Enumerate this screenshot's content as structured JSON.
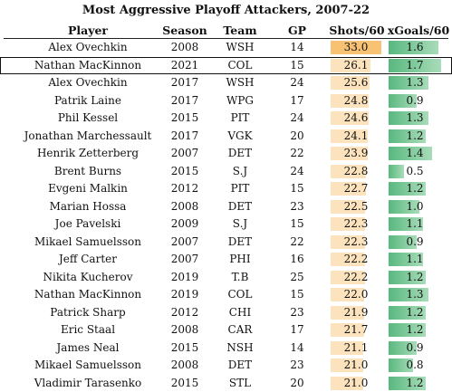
{
  "chart_data": {
    "type": "table",
    "title": "Most Aggressive Playoff Attackers, 2007-22",
    "columns": [
      "Player",
      "Season",
      "Team",
      "GP",
      "Shots/60",
      "xGoals/60"
    ],
    "highlighted_row_index": 1,
    "colors": {
      "shots_bar_highlight": "#f7c274",
      "shots_bar": "#fce3bd",
      "xgoals_bar": "#58b87e"
    },
    "rows": [
      {
        "player": "Alex Ovechkin",
        "season": "2008",
        "team": "WSH",
        "gp": "14",
        "shots60": "33.0",
        "xg60": "1.6"
      },
      {
        "player": "Nathan MacKinnon",
        "season": "2021",
        "team": "COL",
        "gp": "15",
        "shots60": "26.1",
        "xg60": "1.7"
      },
      {
        "player": "Alex Ovechkin",
        "season": "2017",
        "team": "WSH",
        "gp": "24",
        "shots60": "25.6",
        "xg60": "1.3"
      },
      {
        "player": "Patrik Laine",
        "season": "2017",
        "team": "WPG",
        "gp": "17",
        "shots60": "24.8",
        "xg60": "0.9"
      },
      {
        "player": "Phil Kessel",
        "season": "2015",
        "team": "PIT",
        "gp": "24",
        "shots60": "24.6",
        "xg60": "1.3"
      },
      {
        "player": "Jonathan Marchessault",
        "season": "2017",
        "team": "VGK",
        "gp": "20",
        "shots60": "24.1",
        "xg60": "1.2"
      },
      {
        "player": "Henrik Zetterberg",
        "season": "2007",
        "team": "DET",
        "gp": "22",
        "shots60": "23.9",
        "xg60": "1.4"
      },
      {
        "player": "Brent Burns",
        "season": "2015",
        "team": "S.J",
        "gp": "24",
        "shots60": "22.8",
        "xg60": "0.5"
      },
      {
        "player": "Evgeni Malkin",
        "season": "2012",
        "team": "PIT",
        "gp": "15",
        "shots60": "22.7",
        "xg60": "1.2"
      },
      {
        "player": "Marian Hossa",
        "season": "2008",
        "team": "DET",
        "gp": "23",
        "shots60": "22.5",
        "xg60": "1.0"
      },
      {
        "player": "Joe Pavelski",
        "season": "2009",
        "team": "S.J",
        "gp": "15",
        "shots60": "22.3",
        "xg60": "1.1"
      },
      {
        "player": "Mikael Samuelsson",
        "season": "2007",
        "team": "DET",
        "gp": "22",
        "shots60": "22.3",
        "xg60": "0.9"
      },
      {
        "player": "Jeff Carter",
        "season": "2007",
        "team": "PHI",
        "gp": "16",
        "shots60": "22.2",
        "xg60": "1.1"
      },
      {
        "player": "Nikita Kucherov",
        "season": "2019",
        "team": "T.B",
        "gp": "25",
        "shots60": "22.2",
        "xg60": "1.2"
      },
      {
        "player": "Nathan MacKinnon",
        "season": "2019",
        "team": "COL",
        "gp": "15",
        "shots60": "22.0",
        "xg60": "1.3"
      },
      {
        "player": "Patrick Sharp",
        "season": "2012",
        "team": "CHI",
        "gp": "23",
        "shots60": "21.9",
        "xg60": "1.2"
      },
      {
        "player": "Eric Staal",
        "season": "2008",
        "team": "CAR",
        "gp": "17",
        "shots60": "21.7",
        "xg60": "1.2"
      },
      {
        "player": "James Neal",
        "season": "2015",
        "team": "NSH",
        "gp": "14",
        "shots60": "21.1",
        "xg60": "0.9"
      },
      {
        "player": "Mikael Samuelsson",
        "season": "2008",
        "team": "DET",
        "gp": "23",
        "shots60": "21.0",
        "xg60": "0.8"
      },
      {
        "player": "Vladimir Tarasenko",
        "season": "2015",
        "team": "STL",
        "gp": "20",
        "shots60": "21.0",
        "xg60": "1.2"
      }
    ]
  }
}
